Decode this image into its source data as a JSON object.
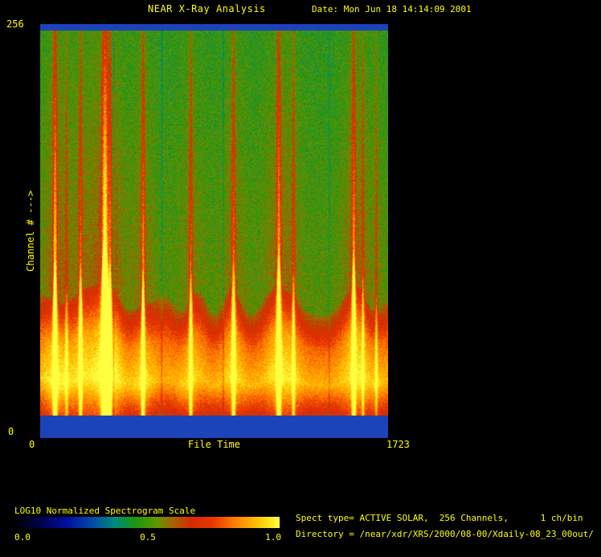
{
  "header": {
    "title": "NEAR X-Ray Analysis",
    "date": "Date: Mon Jun 18 14:14:09 2001"
  },
  "axes": {
    "y_label": "Channel # --->",
    "y_max": "256",
    "y_min": "0",
    "x_min": "0",
    "x_label": "File Time",
    "x_max": "1723"
  },
  "legend": {
    "title": "LOG10 Normalized Spectrogram Scale",
    "tick_left": "0.0",
    "tick_mid": "0.5",
    "tick_right": "1.0"
  },
  "info": {
    "line1": "Spect type= ACTIVE SOLAR,  256 Channels,      1 ch/bin",
    "line2": "Directory = /near/xdr/XRS/2000/08-00/Xdaily-08_23_00out/"
  },
  "colors": {
    "text": "#ffff00",
    "background": "#000000",
    "gap_band": "#1c44b8"
  },
  "chart_data": {
    "type": "heatmap",
    "title": "NEAR X-Ray Analysis",
    "xlabel": "File Time",
    "ylabel": "Channel #",
    "xlim": [
      0,
      1723
    ],
    "ylim": [
      0,
      256
    ],
    "channels": 256,
    "ch_per_bin": 1,
    "spect_type": "ACTIVE SOLAR",
    "scale_label": "LOG10 Normalized Spectrogram Scale",
    "scale_ticks": [
      0.0,
      0.5,
      1.0
    ],
    "legend_position": "bottom-left",
    "colormap": [
      [
        0.0,
        "#000000"
      ],
      [
        0.1,
        "#000050"
      ],
      [
        0.2,
        "#0010a0"
      ],
      [
        0.3,
        "#0050a8"
      ],
      [
        0.38,
        "#008c78"
      ],
      [
        0.46,
        "#20960e"
      ],
      [
        0.54,
        "#649600"
      ],
      [
        0.6,
        "#a86000"
      ],
      [
        0.67,
        "#d42a00"
      ],
      [
        0.75,
        "#e83800"
      ],
      [
        0.83,
        "#ff7d00"
      ],
      [
        0.92,
        "#ffc400"
      ],
      [
        1.0,
        "#ffff40"
      ]
    ],
    "band_color": "#1c44b8",
    "bg_base": 0.47,
    "bg_noise": 0.16,
    "boundary": 0.74,
    "boundary_noise": 0.05,
    "flares": [
      {
        "t": 72,
        "a": 0.5,
        "w": 0.004
      },
      {
        "t": 129,
        "a": 0.16,
        "w": 0.003
      },
      {
        "t": 198,
        "a": 0.3,
        "w": 0.0035
      },
      {
        "t": 319,
        "a": 0.62,
        "w": 0.006
      },
      {
        "t": 345,
        "a": 0.25,
        "w": 0.003
      },
      {
        "t": 508,
        "a": 0.38,
        "w": 0.0035
      },
      {
        "t": 744,
        "a": 0.3,
        "w": 0.0035
      },
      {
        "t": 956,
        "a": 0.32,
        "w": 0.004
      },
      {
        "t": 1180,
        "a": 0.42,
        "w": 0.0045
      },
      {
        "t": 1253,
        "a": 0.24,
        "w": 0.003
      },
      {
        "t": 1551,
        "a": 0.4,
        "w": 0.004
      },
      {
        "t": 1597,
        "a": 0.2,
        "w": 0.0025
      },
      {
        "t": 1663,
        "a": 0.18,
        "w": 0.0025
      }
    ],
    "gaps": [
      {
        "t": 362,
        "d": 0.1,
        "w": 0.0018
      },
      {
        "t": 600,
        "d": 0.08,
        "w": 0.0015
      },
      {
        "t": 905,
        "d": 0.09,
        "w": 0.0015
      },
      {
        "t": 1430,
        "d": 0.07,
        "w": 0.0015
      }
    ]
  }
}
